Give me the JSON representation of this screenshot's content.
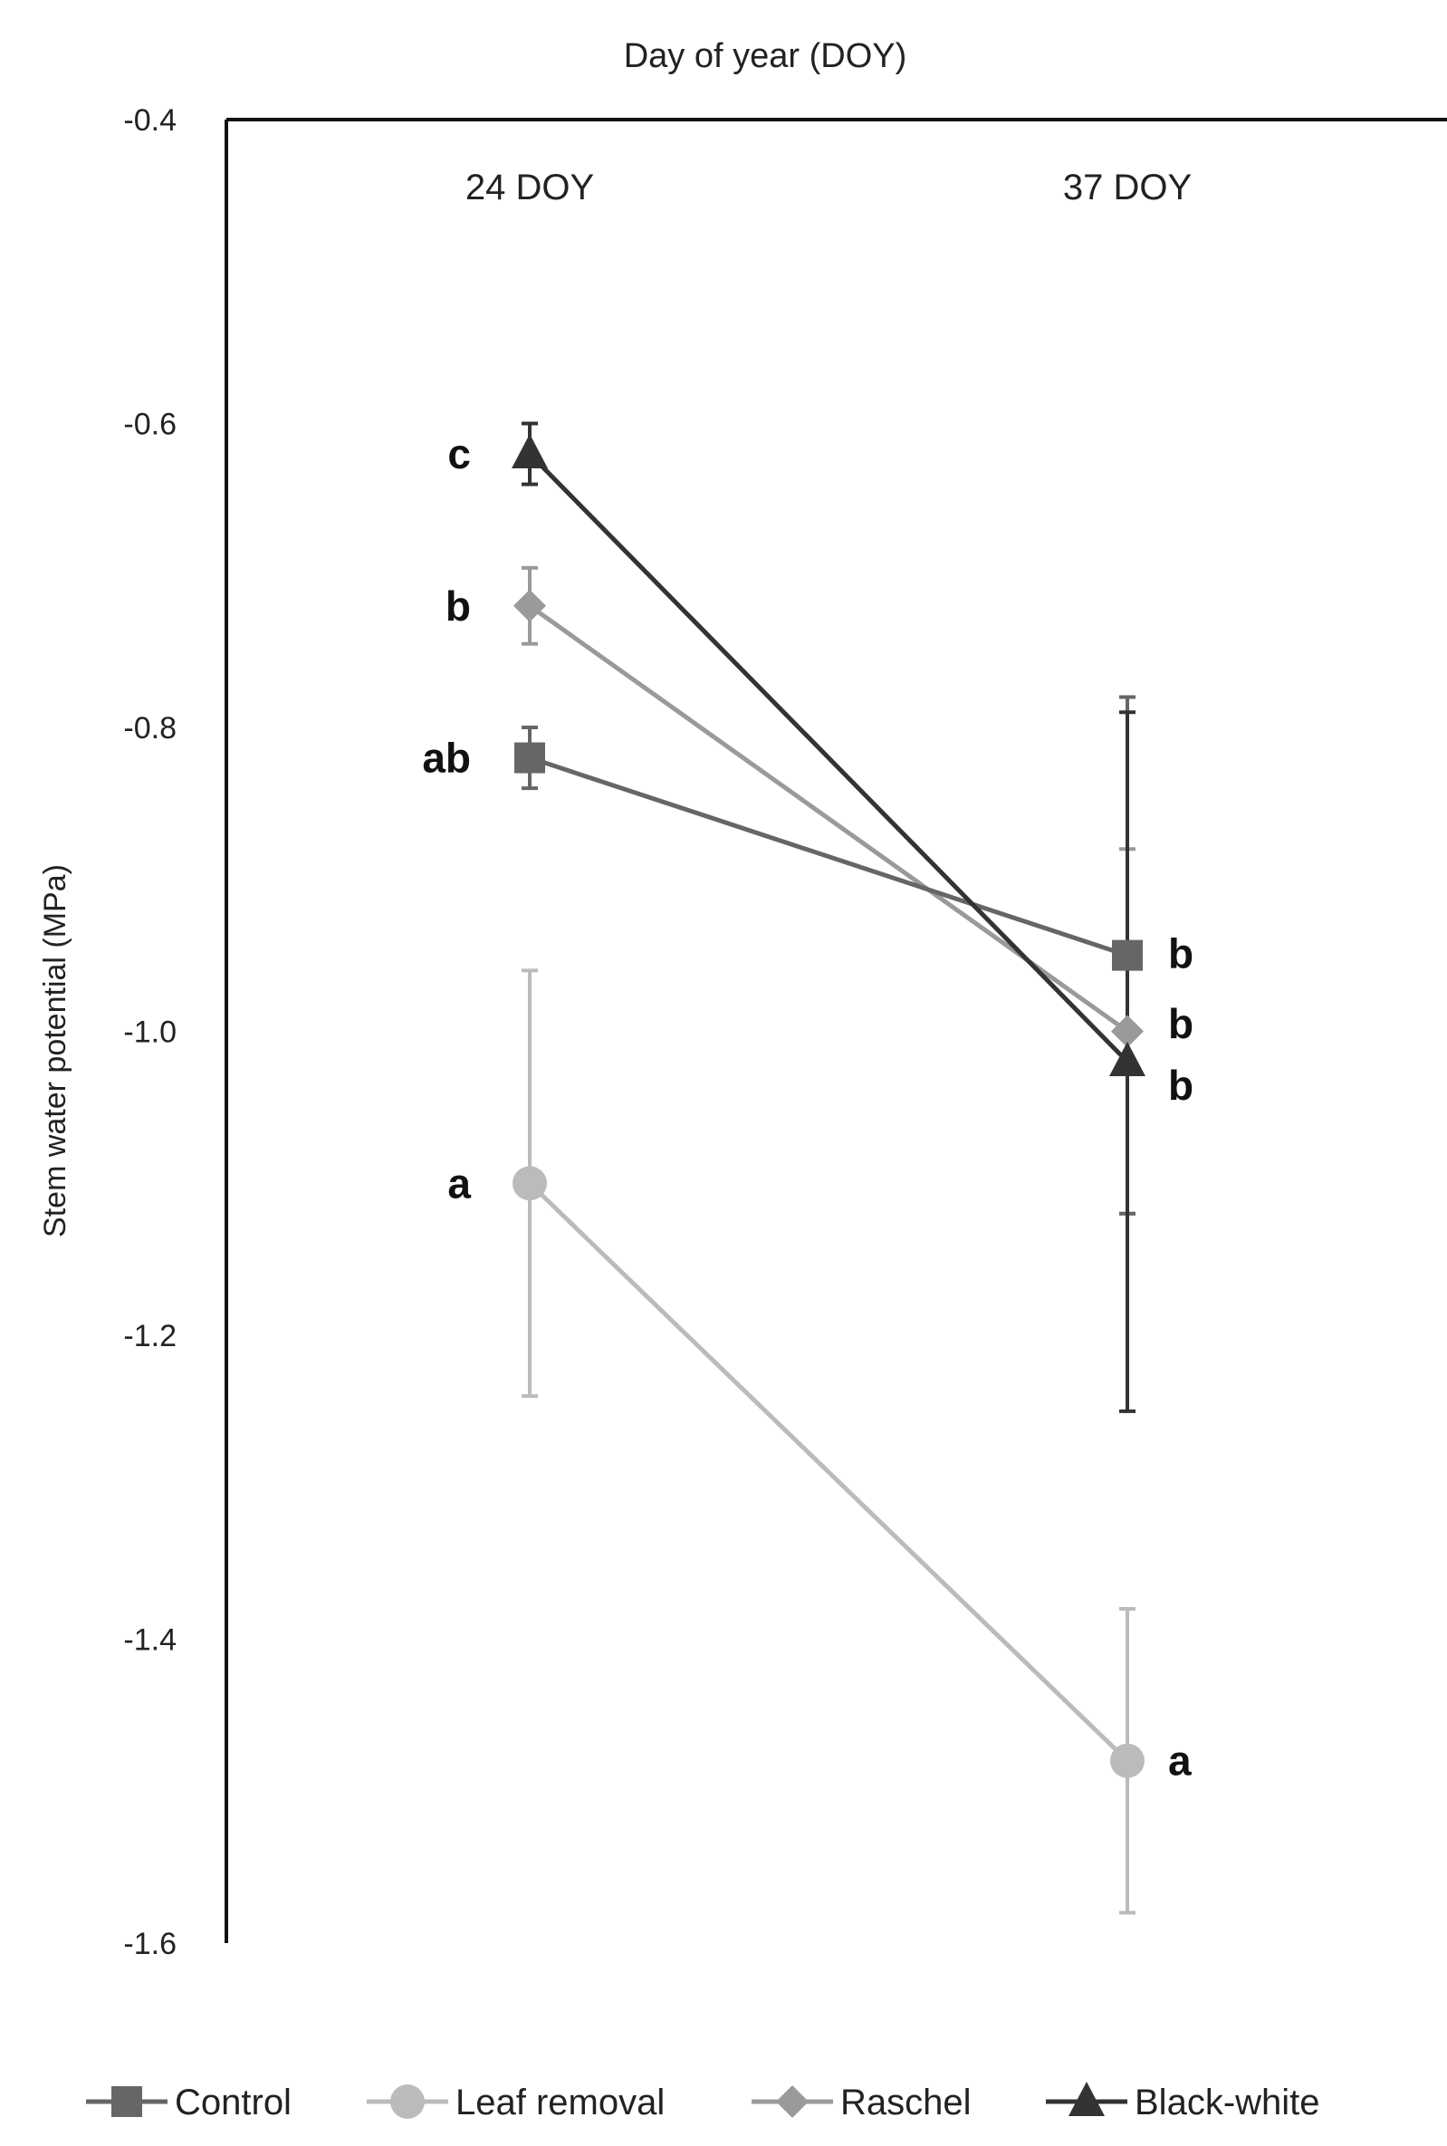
{
  "chart_data": {
    "type": "line",
    "title": "Day of year (DOY)",
    "ylabel": "Stem water potential (MPa)",
    "categories": [
      "24 DOY",
      "37 DOY"
    ],
    "ylim": [
      -1.6,
      -0.4
    ],
    "yticks": [
      "-0.4",
      "-0.6",
      "-0.8",
      "-1.0",
      "-1.2",
      "-1.4",
      "-1.6"
    ],
    "x_axis_position": "top",
    "grid": false,
    "legend_position": "bottom",
    "series": [
      {
        "name": "Control",
        "marker": "square",
        "color": "#666666",
        "values": [
          -0.82,
          -0.95
        ],
        "errors": [
          0.02,
          0.17
        ],
        "significance": [
          "ab",
          "b"
        ]
      },
      {
        "name": "Leaf removal",
        "marker": "circle",
        "color": "#bbbbbb",
        "values": [
          -1.1,
          -1.48
        ],
        "errors": [
          0.14,
          0.1
        ],
        "significance": [
          "a",
          "a"
        ]
      },
      {
        "name": "Raschel",
        "marker": "diamond",
        "color": "#9a9a9a",
        "values": [
          -0.72,
          -1.0
        ],
        "errors": [
          0.025,
          0.12
        ],
        "significance": [
          "b",
          "b"
        ]
      },
      {
        "name": "Black-white",
        "marker": "triangle",
        "color": "#333333",
        "values": [
          -0.62,
          -1.02
        ],
        "errors": [
          0.02,
          0.23
        ],
        "significance": [
          "c",
          "b"
        ]
      }
    ]
  }
}
